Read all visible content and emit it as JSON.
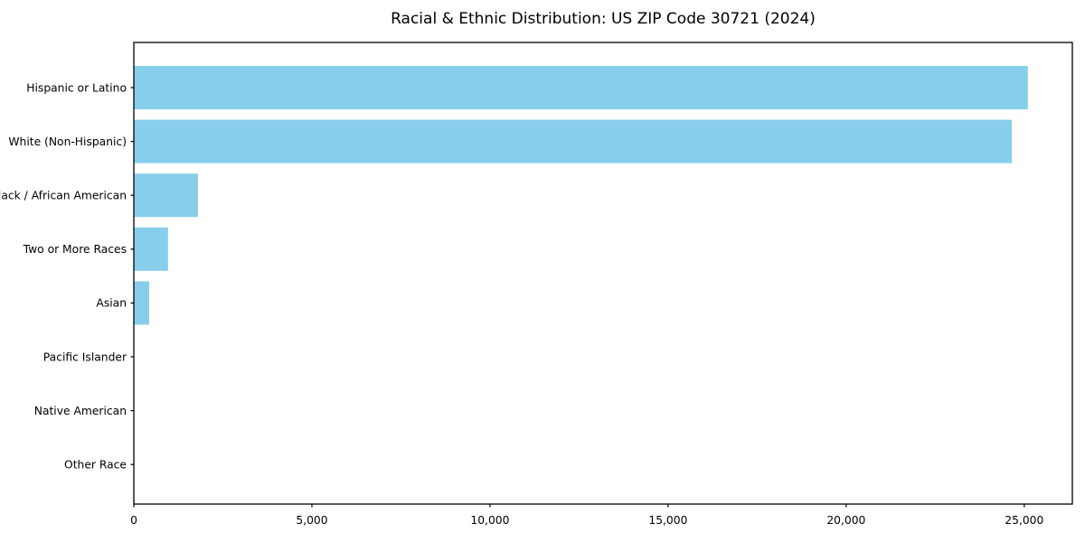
{
  "page": {
    "background": "#ffffff"
  },
  "chart_data": {
    "type": "bar",
    "orientation": "horizontal",
    "title": "Racial & Ethnic Distribution: US ZIP Code 30721 (2024)",
    "categories": [
      "Hispanic or Latino",
      "White (Non-Hispanic)",
      "Black / African American",
      "Two or More Races",
      "Asian",
      "Pacific Islander",
      "Native American",
      "Other Race"
    ],
    "values": [
      25100,
      24650,
      1800,
      960,
      430,
      0,
      0,
      0
    ],
    "xlabel": "",
    "ylabel": "",
    "xlim": [
      0,
      26350
    ],
    "x_ticks": [
      0,
      5000,
      10000,
      15000,
      20000,
      25000
    ],
    "x_tick_labels": [
      "0",
      "5,000",
      "10,000",
      "15,000",
      "20,000",
      "25,000"
    ],
    "bar_color": "#87CEEB",
    "axis_color": "#000000",
    "text_color": "#000000",
    "grid": false,
    "legend": null
  }
}
